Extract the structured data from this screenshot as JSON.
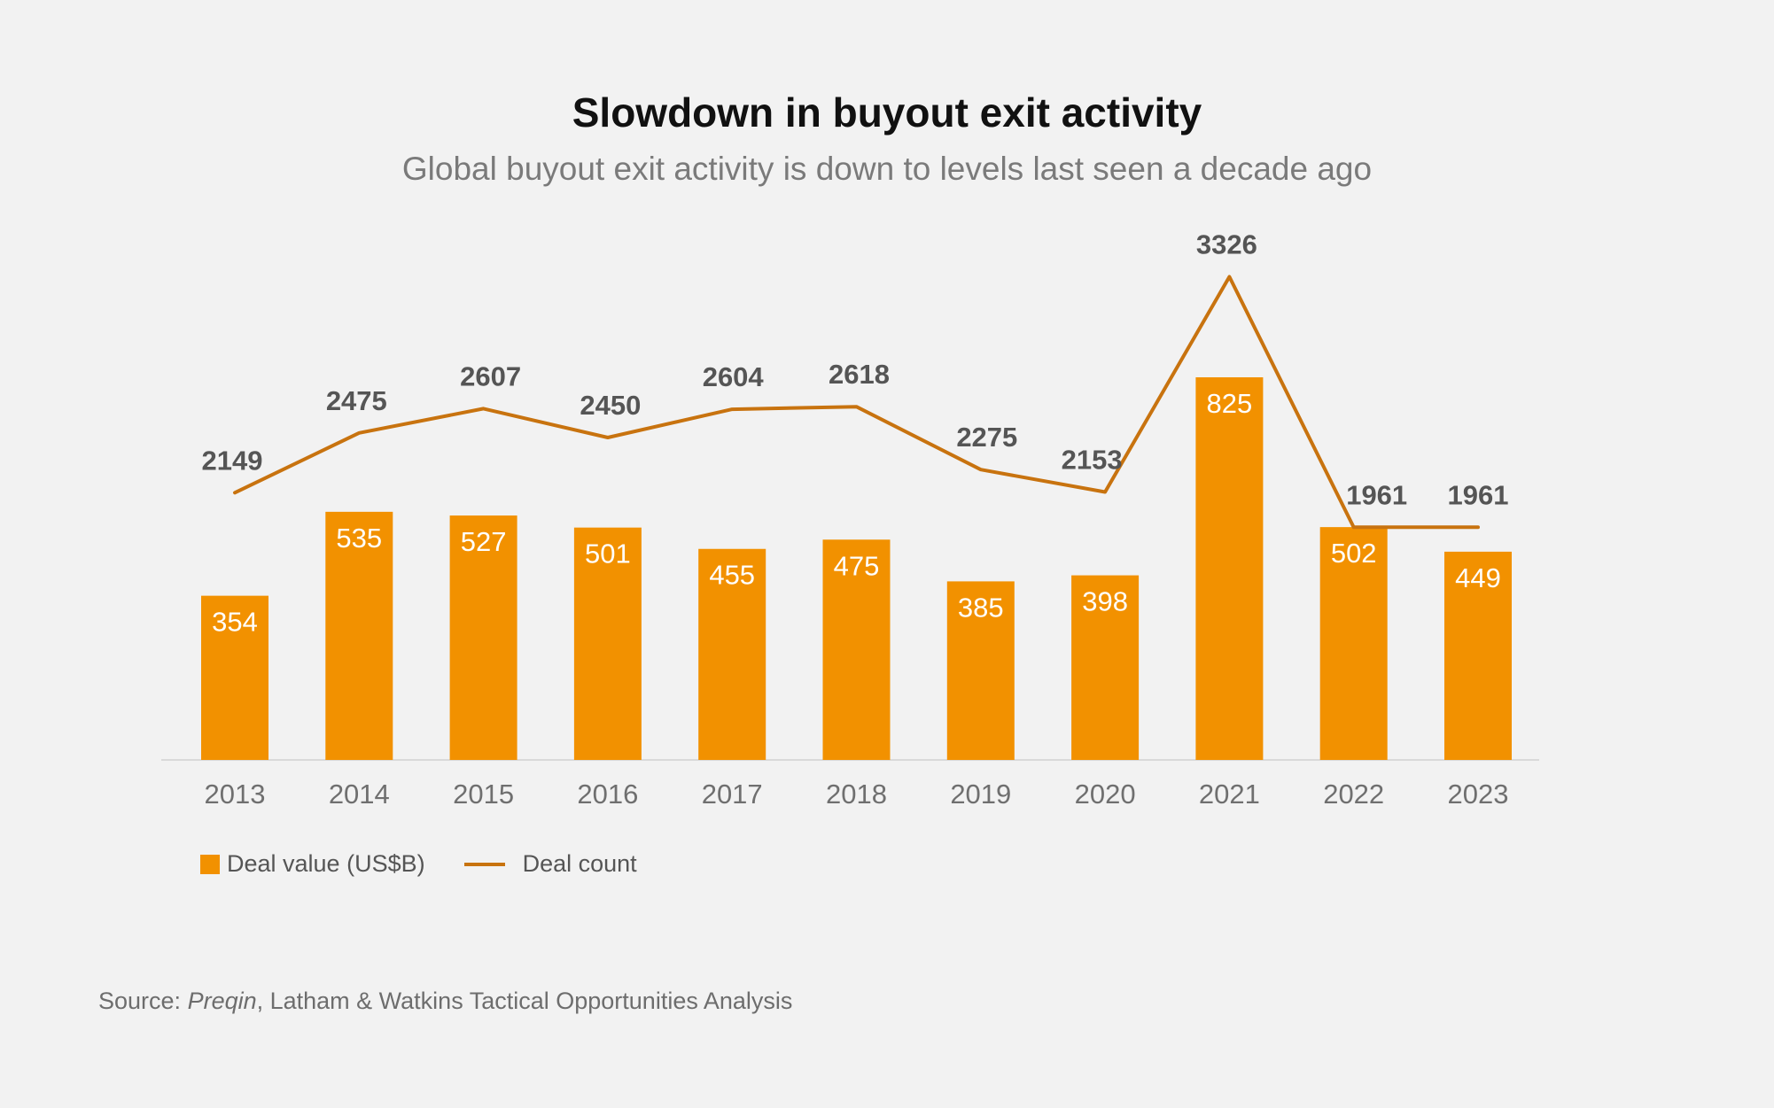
{
  "header": {
    "title": "Slowdown in buyout exit activity",
    "subtitle": "Global buyout exit activity is down to levels last seen a decade ago"
  },
  "legend": {
    "bar_label": "Deal value (US$B)",
    "line_label": "Deal count"
  },
  "source": {
    "prefix": "Source: ",
    "italic": "Preqin",
    "rest": ", Latham & Watkins Tactical Opportunities Analysis"
  },
  "colors": {
    "bar": "#f29100",
    "line": "#c8730f",
    "bar_label": "#ffffff",
    "line_label": "#555555",
    "axis_label": "#6f6f6f",
    "axis_line": "#d9d9d9"
  },
  "chart_data": {
    "type": "bar",
    "title": "Slowdown in buyout exit activity",
    "subtitle": "Global buyout exit activity is down to levels last seen a decade ago",
    "categories": [
      "2013",
      "2014",
      "2015",
      "2016",
      "2017",
      "2018",
      "2019",
      "2020",
      "2021",
      "2022",
      "2023"
    ],
    "series": [
      {
        "name": "Deal value (US$B)",
        "type": "bar",
        "axis": "left",
        "values": [
          354,
          535,
          527,
          501,
          455,
          475,
          385,
          398,
          825,
          502,
          449
        ]
      },
      {
        "name": "Deal count",
        "type": "line",
        "axis": "right",
        "values": [
          2149,
          2475,
          2607,
          2450,
          2604,
          2618,
          2275,
          2153,
          3326,
          1961,
          1961
        ]
      }
    ],
    "ylim_left": [
      0,
      825
    ],
    "ylim_right": [
      0,
      3326
    ],
    "xlabel": "",
    "ylabel": "",
    "grid": false,
    "legend_position": "bottom-left"
  }
}
